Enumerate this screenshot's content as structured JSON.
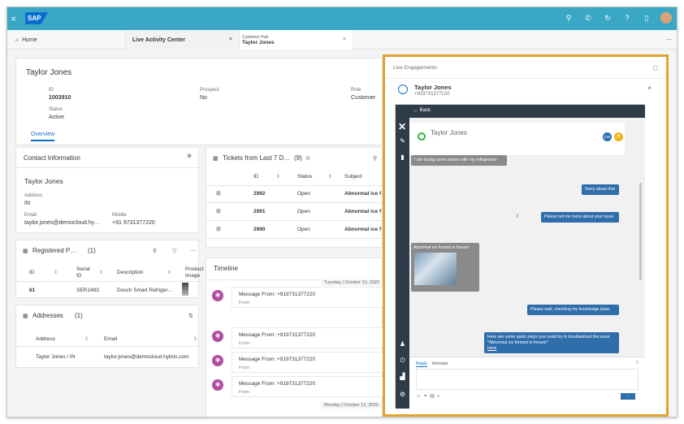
{
  "shell": {
    "logo": "SAP",
    "icons": [
      "search-icon",
      "phone-icon",
      "history-icon",
      "help-icon",
      "notification-icon",
      "avatar"
    ]
  },
  "tabs": [
    {
      "label": "Home"
    },
    {
      "label": "Live Activity Center"
    },
    {
      "small": "Customer Hub",
      "label": "Taylor Jones"
    }
  ],
  "header": {
    "name": "Taylor Jones",
    "id_label": "ID",
    "id_value": "1003910",
    "prospect_label": "Prospect",
    "prospect_value": "No",
    "role_label": "Role",
    "role_value": "Customer",
    "status_label": "Status",
    "status_value": "Active",
    "overview_tab": "Overview"
  },
  "contact": {
    "title": "Contact Information",
    "name": "Taylor Jones",
    "address_label": "Address",
    "address_value": "IN",
    "email_label": "Email",
    "email_value": "taylor.jones@democloud.hy…",
    "mobile_label": "Mobile",
    "mobile_value": "+91 9731377220"
  },
  "tickets": {
    "title": "Tickets from Last 7 D…",
    "count": "(9)",
    "columns": [
      "ID",
      "Status",
      "Subject"
    ],
    "rows": [
      {
        "id": "2992",
        "status": "Open",
        "subject": "Abnormal ice f"
      },
      {
        "id": "2991",
        "status": "Open",
        "subject": "Abnormal ice f"
      },
      {
        "id": "2990",
        "status": "Open",
        "subject": "Abnormal ice f"
      }
    ]
  },
  "registered": {
    "title": "Registered P…",
    "count": "(1)",
    "columns": [
      "ID",
      "Serial ID",
      "Description",
      "Product Image"
    ],
    "rows": [
      {
        "id": "61",
        "serial": "SER1493",
        "desc": "Dosch Smart Refriger…"
      }
    ]
  },
  "addresses": {
    "title": "Addresses",
    "count": "(1)",
    "columns": [
      "Address",
      "Email"
    ],
    "rows": [
      {
        "address": "Taylor Jones / IN",
        "email": "taylor.jones@democloud.hybris.com"
      }
    ]
  },
  "timeline": {
    "title": "Timeline",
    "date1": "Tuesday | October 13, 2020",
    "date2": "Monday | October 12, 2020",
    "from_label": "From:",
    "items": [
      {
        "title": "Message From: +919731377220"
      },
      {
        "title": "Message From: +919731377220"
      },
      {
        "title": "Message From: +919731377220"
      },
      {
        "title": "Message From: +919731377220"
      }
    ]
  },
  "live": {
    "title": "Live Engagements",
    "name": "Taylor Jones",
    "phone": "+919731377220",
    "back": "Back",
    "chat_name": "Taylor Jones",
    "chat_badge_cw": "CW",
    "messages": {
      "m1": "I am facing some issues with my refrigerator",
      "m2": "Sorry about that",
      "m3": "Please tell me more about your issue",
      "m4": "Abnormal ice formed in freezer",
      "m5": "Please wait, checking my knowledge base.",
      "m6": "Here are some quick steps you could try to troubleshoot the issue *Abnormal ice formed in freezer*",
      "m6_link": "Here"
    },
    "compose": {
      "reply_tab": "Reply",
      "remark_tab": "Remark"
    }
  }
}
